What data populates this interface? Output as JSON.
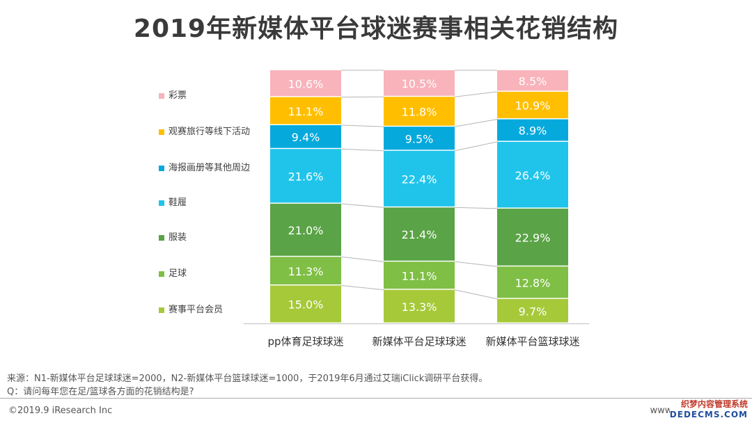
{
  "title": "2019年新媒体平台球迷赛事相关花销结构",
  "chart_data": {
    "type": "bar",
    "stacked": true,
    "normalized": true,
    "categories": [
      "pp体育足球球迷",
      "新媒体平台足球球迷",
      "新媒体平台篮球球迷"
    ],
    "series": [
      {
        "name": "赛事平台会员",
        "color": "#a6c93a",
        "values": [
          15.0,
          13.3,
          9.7
        ]
      },
      {
        "name": "足球",
        "color": "#7fbf45",
        "values": [
          11.3,
          11.1,
          12.8
        ]
      },
      {
        "name": "服装",
        "color": "#5aa346",
        "values": [
          21.0,
          21.4,
          22.9
        ]
      },
      {
        "name": "鞋履",
        "color": "#20c4ea",
        "values": [
          21.6,
          22.4,
          26.4
        ]
      },
      {
        "name": "海报画册等其他周边",
        "color": "#06a9dc",
        "values": [
          9.4,
          9.5,
          8.9
        ]
      },
      {
        "name": "观赛旅行等线下活动",
        "color": "#ffbf00",
        "values": [
          11.1,
          11.8,
          10.9
        ]
      },
      {
        "name": "彩票",
        "color": "#f8b3bb",
        "values": [
          10.6,
          10.5,
          8.5
        ]
      }
    ],
    "data_labels": [
      [
        "15.0%",
        "13.3%",
        "9.7%"
      ],
      [
        "11.3%",
        "11.1%",
        "12.8%"
      ],
      [
        "21.0%",
        "21.4%",
        "22.9%"
      ],
      [
        "21.6%",
        "22.4%",
        "26.4%"
      ],
      [
        "9.4%",
        "9.5%",
        "8.9%"
      ],
      [
        "11.1%",
        "11.8%",
        "10.9%"
      ],
      [
        "10.6%",
        "10.5%",
        "8.5%"
      ]
    ],
    "legend_position": "left",
    "legend_order": [
      "彩票",
      "观赛旅行等线下活动",
      "海报画册等其他周边",
      "鞋履",
      "服装",
      "足球",
      "赛事平台会员"
    ],
    "grid": false,
    "connector_lines": true
  },
  "footnotes": {
    "source": "来源：N1-新媒体平台足球球迷=2000，N2-新媒体平台篮球球迷=1000，于2019年6月通过艾瑞iClick调研平台获得。",
    "question": "Q：请问每年您在足/篮球各方面的花销结构是?"
  },
  "footer": {
    "copyright": "©2019.9 iResearch Inc",
    "website": "www.i",
    "watermark_line1": "织梦内容管理系统",
    "watermark_line2": "DEDECMS.COM"
  }
}
